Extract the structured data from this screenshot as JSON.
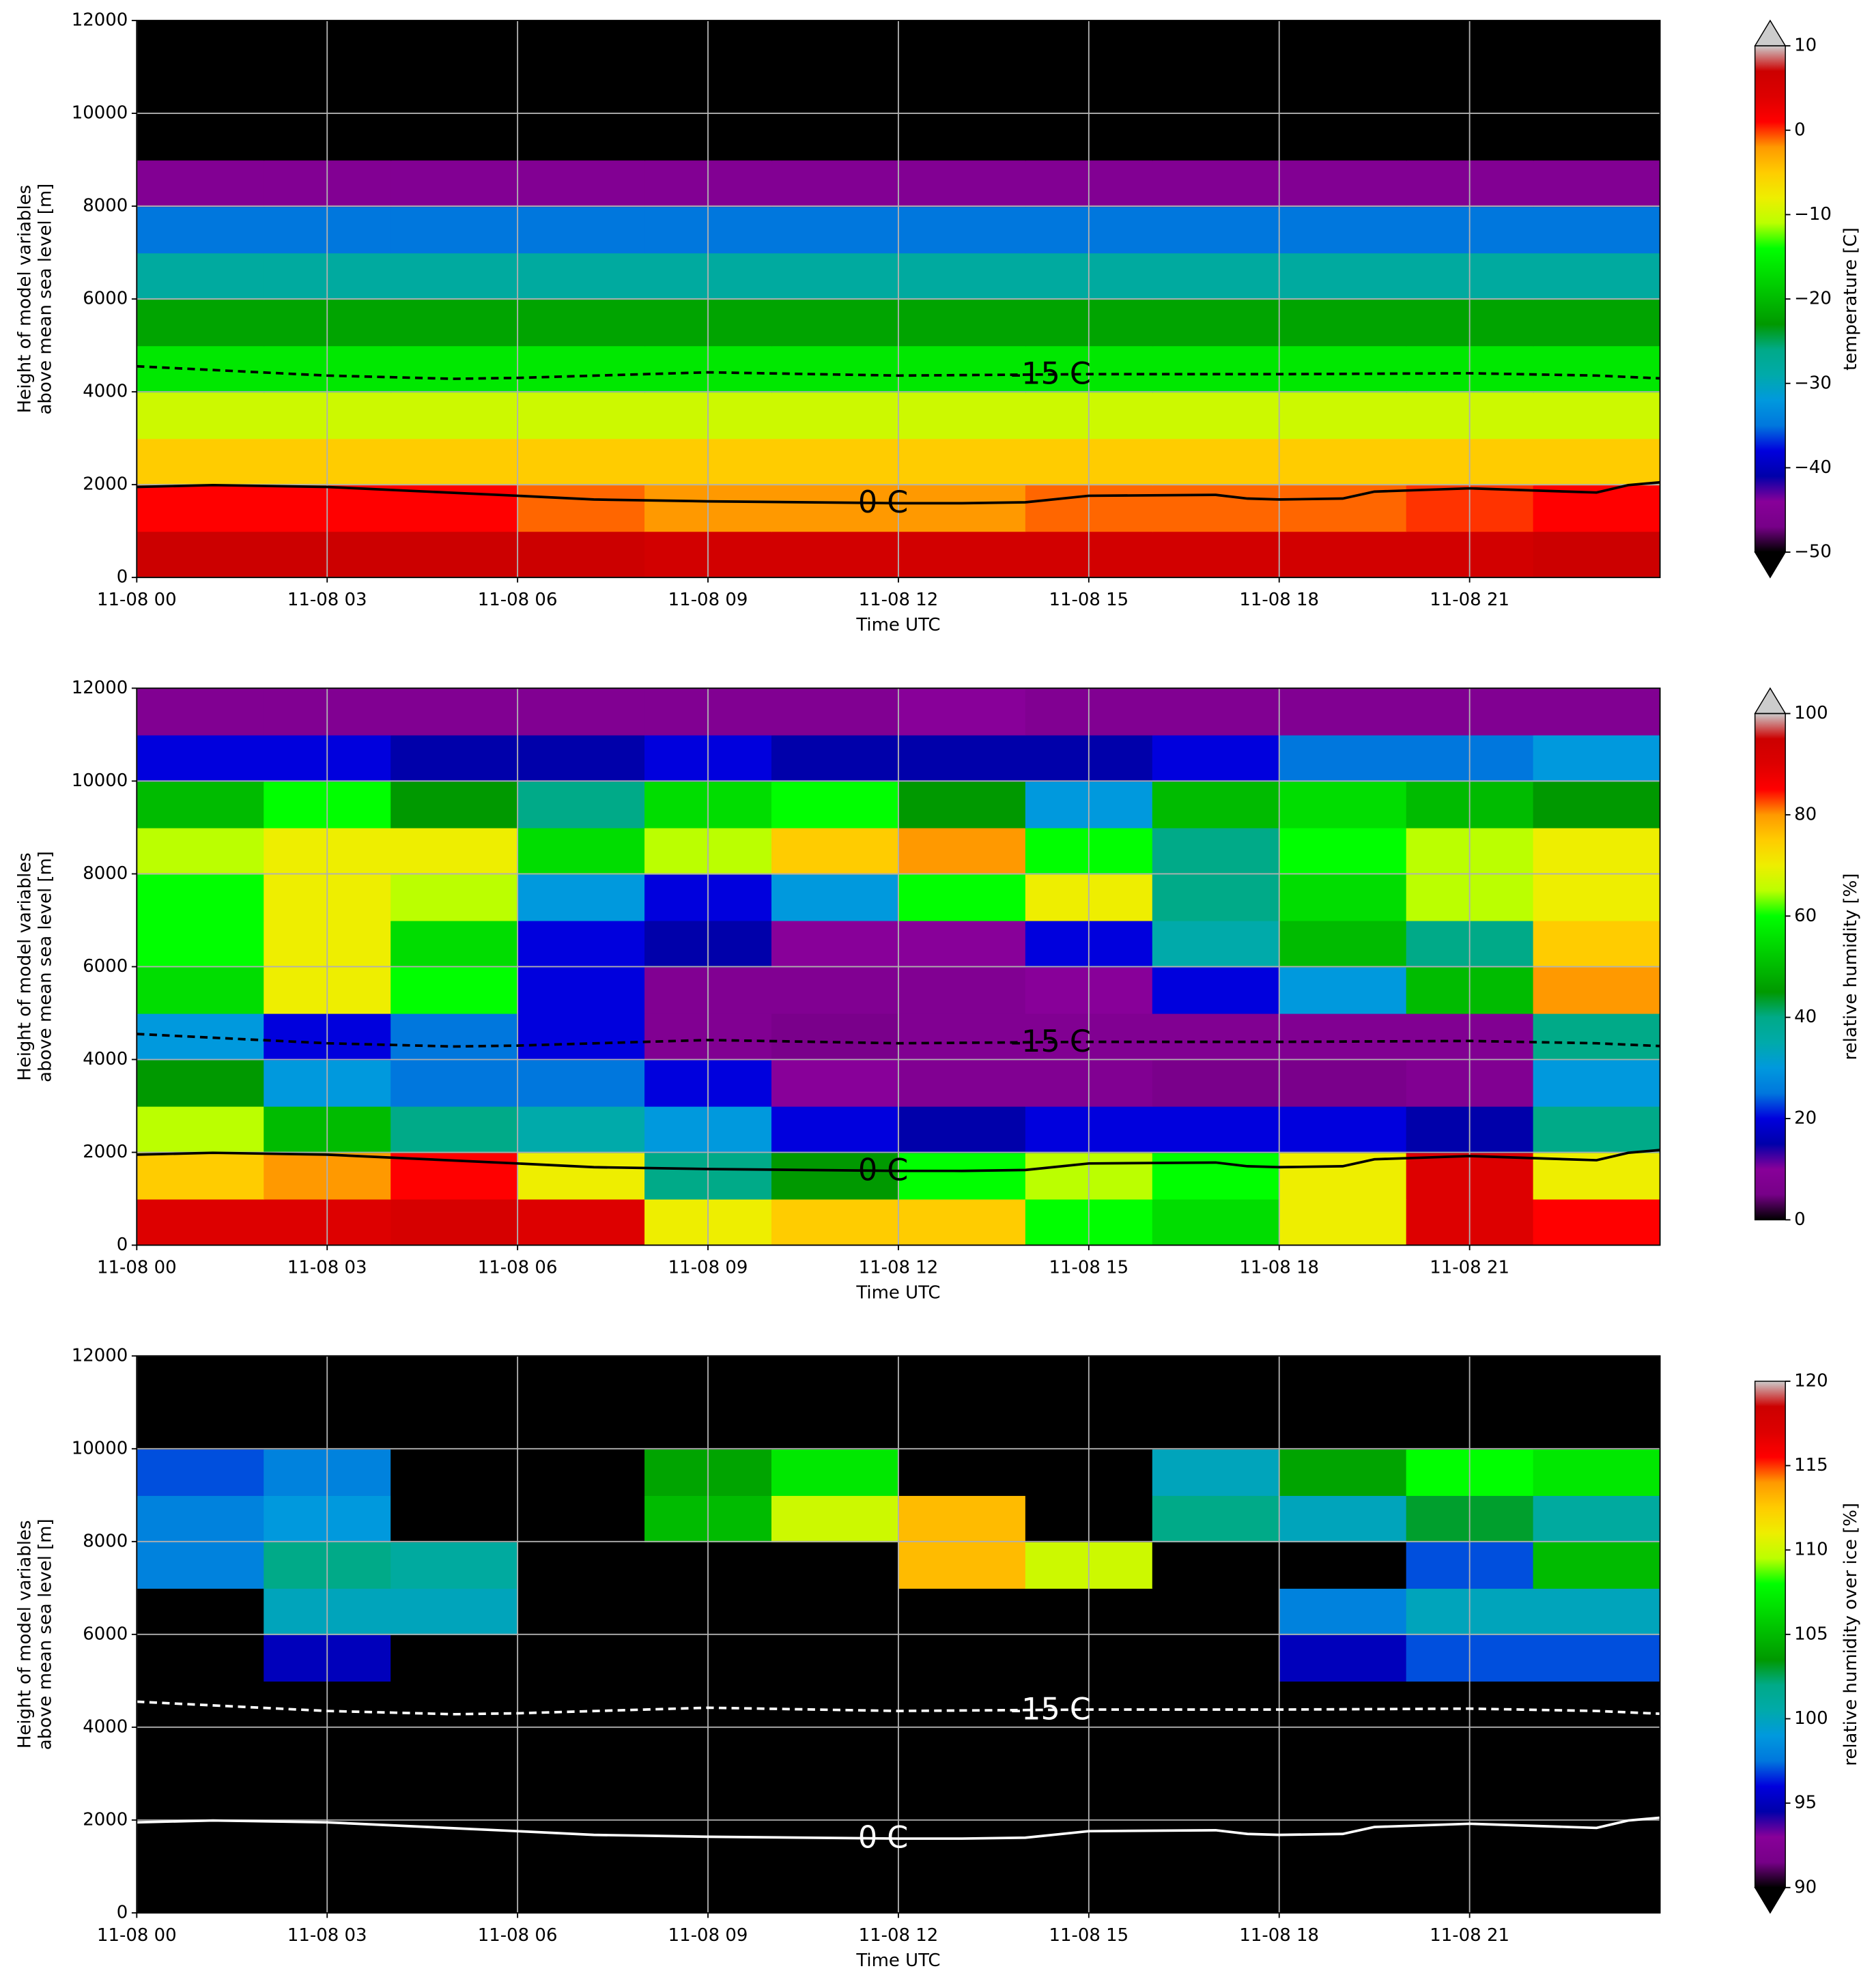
{
  "chart_data": [
    {
      "type": "heatmap",
      "xlabel": "Time UTC",
      "ylabel": [
        "Height of model variables",
        "above mean sea level [m]"
      ],
      "xlim": [
        0,
        24
      ],
      "ylim": [
        0,
        12000
      ],
      "grid": true,
      "colormap": "nipy_spectral",
      "xticks": [
        {
          "value": 0,
          "label": "11-08 00"
        },
        {
          "value": 3,
          "label": "11-08 03"
        },
        {
          "value": 6,
          "label": "11-08 06"
        },
        {
          "value": 9,
          "label": "11-08 09"
        },
        {
          "value": 12,
          "label": "11-08 12"
        },
        {
          "value": 15,
          "label": "11-08 15"
        },
        {
          "value": 18,
          "label": "11-08 18"
        },
        {
          "value": 21,
          "label": "11-08 21"
        }
      ],
      "yticks": [
        0,
        2000,
        4000,
        6000,
        8000,
        10000,
        12000
      ],
      "xbins": [
        0,
        2,
        4,
        6,
        8,
        10,
        12,
        14,
        16,
        18,
        20,
        22,
        24
      ],
      "ybins": [
        0,
        1000,
        2000,
        3000,
        4000,
        5000,
        6000,
        7000,
        8000,
        9000,
        10000,
        11000,
        12000
      ],
      "z": [
        [
          7,
          7,
          7,
          7,
          6,
          6,
          6,
          6,
          6,
          6,
          6,
          7
        ],
        [
          1,
          1,
          1,
          -1,
          -2,
          -2,
          -2,
          -1,
          -1,
          -1,
          0,
          1
        ],
        [
          -5,
          -5,
          -5,
          -5,
          -5,
          -5,
          -5,
          -5,
          -5,
          -5,
          -5,
          -5
        ],
        [
          -10,
          -10,
          -10,
          -10,
          -10,
          -10,
          -10,
          -10,
          -10,
          -10,
          -10,
          -10
        ],
        [
          -16,
          -16,
          -16,
          -16,
          -16,
          -16,
          -16,
          -16,
          -16,
          -16,
          -16,
          -16
        ],
        [
          -22,
          -22,
          -22,
          -22,
          -22,
          -22,
          -22,
          -22,
          -22,
          -22,
          -22,
          -22
        ],
        [
          -28,
          -28,
          -28,
          -28,
          -28,
          -28,
          -28,
          -28,
          -28,
          -28,
          -28,
          -28
        ],
        [
          -35,
          -35,
          -35,
          -35,
          -35,
          -35,
          -35,
          -35,
          -35,
          -35,
          -35,
          -35
        ],
        [
          -45,
          -45,
          -45,
          -45,
          -45,
          -45,
          -45,
          -45,
          -45,
          -45,
          -45,
          -45
        ],
        [
          -51,
          -51,
          -51,
          -51,
          -51,
          -51,
          -51,
          -51,
          -51,
          -51,
          -51,
          -51
        ],
        [
          -56,
          -56,
          -56,
          -56,
          -56,
          -56,
          -56,
          -56,
          -56,
          -56,
          -56,
          -56
        ],
        [
          -60,
          -60,
          -60,
          -60,
          -60,
          -60,
          -60,
          -60,
          -60,
          -60,
          -60,
          -60
        ]
      ],
      "colorbar": {
        "label": "temperature [C]",
        "lim": [
          -50,
          10
        ],
        "extend": "both",
        "ticks": [
          {
            "value": -50,
            "label": "−50"
          },
          {
            "value": -40,
            "label": "−40"
          },
          {
            "value": -30,
            "label": "−30"
          },
          {
            "value": -20,
            "label": "−20"
          },
          {
            "value": -10,
            "label": "−10"
          },
          0,
          10
        ]
      },
      "contours": [
        {
          "label": "-15 C",
          "style": "dashed",
          "color": "#000000",
          "x": [
            0,
            3,
            5,
            6,
            9,
            12,
            15,
            18,
            21,
            23,
            24
          ],
          "values": [
            4550,
            4350,
            4280,
            4300,
            4420,
            4350,
            4380,
            4380,
            4400,
            4350,
            4290
          ]
        },
        {
          "label": "0 C",
          "style": "solid",
          "color": "#000000",
          "x": [
            0,
            1.2,
            3,
            6,
            7.2,
            9,
            12,
            13,
            14,
            15,
            17,
            17.5,
            18,
            19,
            19.5,
            21,
            23,
            23.5,
            24
          ],
          "values": [
            1950,
            1990,
            1950,
            1760,
            1680,
            1640,
            1600,
            1600,
            1620,
            1760,
            1780,
            1700,
            1680,
            1700,
            1850,
            1920,
            1830,
            1990,
            2050
          ]
        }
      ]
    },
    {
      "type": "heatmap",
      "xlabel": "Time UTC",
      "ylabel": [
        "Height of model variables",
        "above mean sea level [m]"
      ],
      "xlim": [
        0,
        24
      ],
      "ylim": [
        0,
        12000
      ],
      "grid": true,
      "colormap": "nipy_spectral",
      "xticks": [
        {
          "value": 0,
          "label": "11-08 00"
        },
        {
          "value": 3,
          "label": "11-08 03"
        },
        {
          "value": 6,
          "label": "11-08 06"
        },
        {
          "value": 9,
          "label": "11-08 09"
        },
        {
          "value": 12,
          "label": "11-08 12"
        },
        {
          "value": 15,
          "label": "11-08 15"
        },
        {
          "value": 18,
          "label": "11-08 18"
        },
        {
          "value": 21,
          "label": "11-08 21"
        }
      ],
      "yticks": [
        0,
        2000,
        4000,
        6000,
        8000,
        10000,
        12000
      ],
      "xbins": [
        0,
        2,
        4,
        6,
        8,
        10,
        12,
        14,
        16,
        18,
        20,
        22,
        24
      ],
      "ybins": [
        0,
        1000,
        2000,
        3000,
        4000,
        5000,
        6000,
        7000,
        8000,
        9000,
        10000,
        11000,
        12000
      ],
      "z": [
        [
          90,
          90,
          92,
          90,
          70,
          75,
          75,
          60,
          55,
          70,
          90,
          85
        ],
        [
          75,
          80,
          85,
          70,
          40,
          45,
          60,
          65,
          60,
          70,
          90,
          70
        ],
        [
          65,
          50,
          40,
          35,
          30,
          20,
          15,
          20,
          20,
          20,
          15,
          40
        ],
        [
          45,
          30,
          25,
          25,
          20,
          10,
          8,
          8,
          6,
          6,
          8,
          30
        ],
        [
          30,
          20,
          25,
          20,
          8,
          6,
          8,
          8,
          8,
          8,
          8,
          40
        ],
        [
          55,
          70,
          60,
          20,
          8,
          8,
          8,
          10,
          20,
          30,
          50,
          80
        ],
        [
          60,
          70,
          55,
          20,
          15,
          10,
          10,
          20,
          35,
          50,
          40,
          75
        ],
        [
          60,
          70,
          65,
          30,
          20,
          30,
          60,
          70,
          40,
          55,
          65,
          70
        ],
        [
          65,
          70,
          70,
          55,
          65,
          75,
          80,
          60,
          40,
          60,
          65,
          70
        ],
        [
          50,
          60,
          45,
          40,
          55,
          60,
          45,
          30,
          50,
          55,
          50,
          45
        ],
        [
          20,
          20,
          15,
          15,
          20,
          15,
          15,
          15,
          20,
          25,
          25,
          30
        ],
        [
          8,
          8,
          8,
          8,
          8,
          8,
          10,
          8,
          8,
          8,
          8,
          8
        ]
      ],
      "colorbar": {
        "label": "relative humidity [%]",
        "lim": [
          0,
          100
        ],
        "extend": "max",
        "ticks": [
          0,
          20,
          40,
          60,
          80,
          100
        ]
      },
      "contours": [
        {
          "label": "-15 C",
          "style": "dashed",
          "color": "#000000",
          "x": [
            0,
            3,
            5,
            6,
            9,
            12,
            15,
            18,
            21,
            23,
            24
          ],
          "values": [
            4550,
            4350,
            4280,
            4300,
            4420,
            4350,
            4380,
            4380,
            4400,
            4350,
            4290
          ]
        },
        {
          "label": "0 C",
          "style": "solid",
          "color": "#000000",
          "x": [
            0,
            1.2,
            3,
            6,
            7.2,
            9,
            12,
            13,
            14,
            15,
            17,
            17.5,
            18,
            19,
            19.5,
            21,
            23,
            23.5,
            24
          ],
          "values": [
            1950,
            1990,
            1950,
            1760,
            1680,
            1640,
            1600,
            1600,
            1620,
            1760,
            1780,
            1700,
            1680,
            1700,
            1850,
            1920,
            1830,
            1990,
            2050
          ]
        }
      ]
    },
    {
      "type": "heatmap",
      "xlabel": "Time UTC",
      "ylabel": [
        "Height of model variables",
        "above mean sea level [m]"
      ],
      "xlim": [
        0,
        24
      ],
      "ylim": [
        0,
        12000
      ],
      "grid": true,
      "colormap": "nipy_spectral",
      "xticks": [
        {
          "value": 0,
          "label": "11-08 00"
        },
        {
          "value": 3,
          "label": "11-08 03"
        },
        {
          "value": 6,
          "label": "11-08 06"
        },
        {
          "value": 9,
          "label": "11-08 09"
        },
        {
          "value": 12,
          "label": "11-08 12"
        },
        {
          "value": 15,
          "label": "11-08 15"
        },
        {
          "value": 18,
          "label": "11-08 18"
        },
        {
          "value": 21,
          "label": "11-08 21"
        }
      ],
      "yticks": [
        0,
        2000,
        4000,
        6000,
        8000,
        10000,
        12000
      ],
      "xbins": [
        0,
        2,
        4,
        6,
        8,
        10,
        12,
        14,
        16,
        18,
        20,
        22,
        24
      ],
      "ybins": [
        0,
        1000,
        2000,
        3000,
        4000,
        5000,
        6000,
        7000,
        8000,
        9000,
        10000,
        11000,
        12000
      ],
      "z": [
        [
          60,
          60,
          60,
          60,
          60,
          60,
          60,
          60,
          60,
          60,
          60,
          60
        ],
        [
          60,
          60,
          60,
          60,
          60,
          60,
          60,
          60,
          60,
          60,
          60,
          60
        ],
        [
          60,
          60,
          60,
          60,
          60,
          60,
          60,
          60,
          60,
          60,
          60,
          60
        ],
        [
          60,
          60,
          60,
          60,
          60,
          60,
          60,
          60,
          60,
          60,
          60,
          60
        ],
        [
          60,
          60,
          60,
          60,
          60,
          60,
          60,
          60,
          60,
          60,
          60,
          60
        ],
        [
          60,
          95,
          60,
          60,
          60,
          60,
          60,
          60,
          60,
          95,
          97,
          97
        ],
        [
          60,
          100,
          100,
          60,
          60,
          60,
          60,
          60,
          60,
          98,
          100,
          100
        ],
        [
          98,
          102,
          101,
          60,
          60,
          60,
          113,
          110,
          60,
          60,
          97,
          105
        ],
        [
          98,
          99,
          60,
          60,
          105,
          110,
          113,
          60,
          102,
          100,
          103,
          101
        ],
        [
          97,
          98,
          60,
          60,
          104,
          107,
          60,
          60,
          100,
          104,
          108,
          107
        ],
        [
          60,
          60,
          60,
          60,
          60,
          60,
          60,
          60,
          60,
          60,
          60,
          60
        ],
        [
          60,
          60,
          60,
          60,
          60,
          60,
          60,
          60,
          60,
          60,
          60,
          60
        ]
      ],
      "colorbar": {
        "label": "relative humidity over ice [%]",
        "lim": [
          90,
          120
        ],
        "extend": "min",
        "ticks": [
          90,
          95,
          100,
          105,
          110,
          115,
          120
        ]
      },
      "contours": [
        {
          "label": "-15 C",
          "style": "dashed",
          "color": "#ffffff",
          "x": [
            0,
            3,
            5,
            6,
            9,
            12,
            15,
            18,
            21,
            23,
            24
          ],
          "values": [
            4550,
            4350,
            4280,
            4300,
            4420,
            4350,
            4380,
            4380,
            4400,
            4350,
            4290
          ]
        },
        {
          "label": "0 C",
          "style": "solid",
          "color": "#ffffff",
          "x": [
            0,
            1.2,
            3,
            6,
            7.2,
            9,
            12,
            13,
            14,
            15,
            17,
            17.5,
            18,
            19,
            19.5,
            21,
            23,
            23.5,
            24
          ],
          "values": [
            1950,
            1990,
            1950,
            1760,
            1680,
            1640,
            1600,
            1600,
            1620,
            1760,
            1780,
            1700,
            1680,
            1700,
            1850,
            1920,
            1830,
            1990,
            2050
          ]
        }
      ]
    }
  ]
}
